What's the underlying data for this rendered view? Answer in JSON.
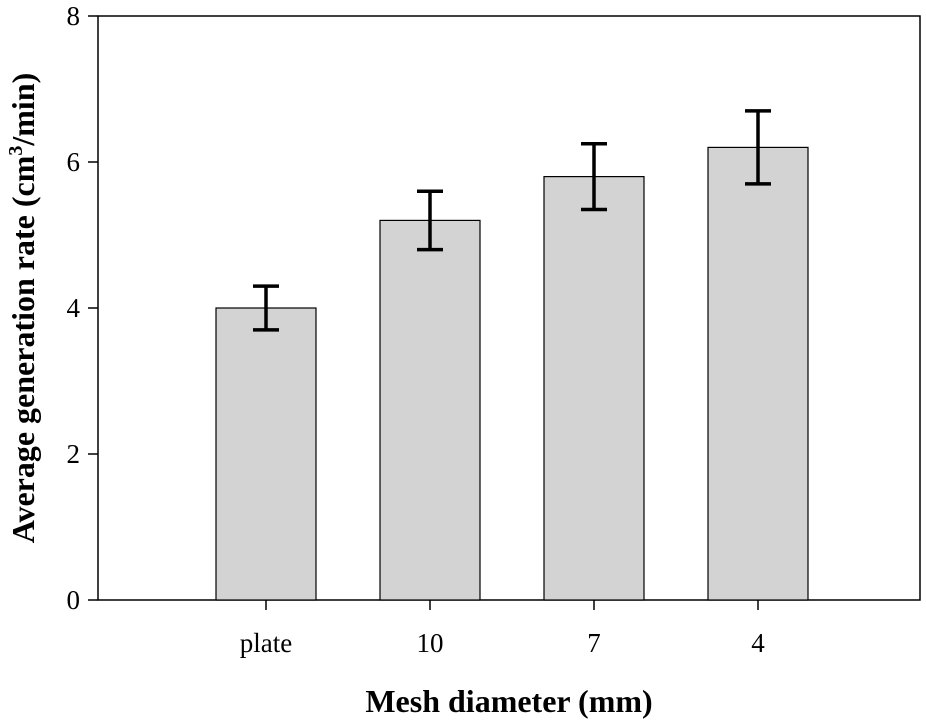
{
  "chart_data": {
    "type": "bar",
    "title": "",
    "xlabel": "Mesh diameter (mm)",
    "ylabel": {
      "before": "Average generation rate (cm",
      "sup": "3",
      "after": "/min)"
    },
    "categories": [
      "plate",
      "10",
      "7",
      "4"
    ],
    "values": [
      4.0,
      5.2,
      5.8,
      6.2
    ],
    "errors": [
      0.3,
      0.4,
      0.45,
      0.5
    ],
    "ylim": [
      0,
      8
    ],
    "yticks": [
      "0",
      "2",
      "4",
      "6",
      "8"
    ],
    "grid": false,
    "legend": "none",
    "colors": {
      "bar_fill": "#d3d3d3",
      "bar_stroke": "#000000",
      "error_bar": "#000000",
      "axis": "#000000"
    }
  }
}
